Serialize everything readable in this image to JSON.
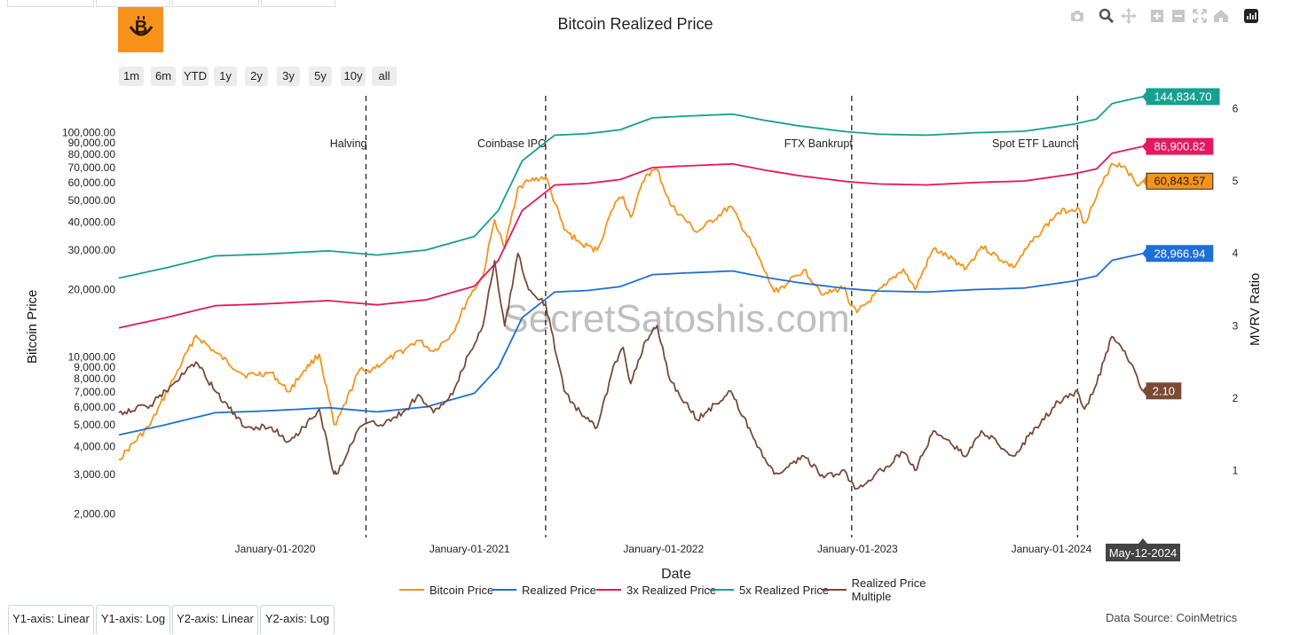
{
  "page": {
    "title": "Bitcoin Realized Price",
    "data_source": "Data Source: CoinMetrics",
    "watermark": "SecretSatoshis.com"
  },
  "toolbar": {
    "icons": [
      "camera-icon",
      "zoom-icon",
      "pan-icon",
      "zoom-in-icon",
      "zoom-out-icon",
      "autoscale-icon",
      "reset-axes-icon",
      "plotly-logo-icon"
    ]
  },
  "range_buttons": [
    "1m",
    "6m",
    "YTD",
    "1y",
    "2y",
    "3y",
    "5y",
    "10y",
    "all"
  ],
  "axis_buttons": [
    "Y1-axis: Linear",
    "Y1-axis: Log",
    "Y2-axis: Linear",
    "Y2-axis: Log"
  ],
  "hover_label": "May-12-2024",
  "chart_data": {
    "type": "line",
    "title": "Bitcoin Realized Price",
    "xlabel": "Date",
    "ylabel": "Bitcoin Price",
    "y2label": "MVRV Ratio",
    "y_scale": "log",
    "xlim": [
      "2019-02-01",
      "2024-05-12"
    ],
    "ylim": [
      1600,
      160000
    ],
    "y2lim": [
      0.1,
      6.3
    ],
    "x_tick_labels": [
      "January-01-2020",
      "January-01-2021",
      "January-01-2022",
      "January-01-2023",
      "January-01-2024"
    ],
    "x_ticks": [
      "2020-01-01",
      "2021-01-01",
      "2022-01-01",
      "2023-01-01",
      "2024-01-01"
    ],
    "y_ticks": [
      2000,
      3000,
      4000,
      5000,
      6000,
      7000,
      8000,
      9000,
      10000,
      20000,
      30000,
      40000,
      50000,
      60000,
      70000,
      80000,
      90000,
      100000
    ],
    "y_tick_labels": [
      "2,000.00",
      "3,000.00",
      "4,000.00",
      "5,000.00",
      "6,000.00",
      "7,000.00",
      "8,000.00",
      "9,000.00",
      "10,000.00",
      "20,000.00",
      "30,000.00",
      "40,000.00",
      "50,000.00",
      "60,000.00",
      "70,000.00",
      "80,000.00",
      "90,000.00",
      "100,000.00"
    ],
    "y2_ticks": [
      1,
      2,
      3,
      4,
      5,
      6
    ],
    "y2_tick_labels": [
      "1",
      "2",
      "3",
      "4",
      "5",
      "6"
    ],
    "grid": false,
    "legend_position": "bottom",
    "annotations": [
      {
        "date": "2020-05-11",
        "label": "Halving"
      },
      {
        "date": "2021-04-14",
        "label": "Coinbase IPO"
      },
      {
        "date": "2022-11-11",
        "label": "FTX Bankrupt"
      },
      {
        "date": "2024-01-10",
        "label": "Spot ETF Launch"
      }
    ],
    "series": [
      {
        "name": "Bitcoin Price",
        "color": "#f7931a",
        "axis": "y",
        "x": [
          "2019-02-01",
          "2019-04-01",
          "2019-05-15",
          "2019-06-26",
          "2019-08-01",
          "2019-09-25",
          "2019-11-15",
          "2019-12-17",
          "2020-01-15",
          "2020-02-13",
          "2020-03-12",
          "2020-03-16",
          "2020-04-29",
          "2020-05-11",
          "2020-06-15",
          "2020-07-27",
          "2020-08-17",
          "2020-09-15",
          "2020-10-21",
          "2020-11-20",
          "2020-12-17",
          "2021-01-08",
          "2021-01-27",
          "2021-02-21",
          "2021-03-13",
          "2021-04-14",
          "2021-05-19",
          "2021-06-22",
          "2021-07-20",
          "2021-08-23",
          "2021-09-07",
          "2021-09-21",
          "2021-10-20",
          "2021-11-10",
          "2021-12-04",
          "2022-01-24",
          "2022-03-28",
          "2022-05-10",
          "2022-06-18",
          "2022-07-15",
          "2022-08-13",
          "2022-09-20",
          "2022-10-29",
          "2022-11-09",
          "2022-11-21",
          "2023-01-14",
          "2023-02-16",
          "2023-03-10",
          "2023-04-14",
          "2023-06-15",
          "2023-07-13",
          "2023-09-11",
          "2023-10-24",
          "2023-12-05",
          "2024-01-10",
          "2024-01-23",
          "2024-02-15",
          "2024-03-14",
          "2024-04-08",
          "2024-05-01",
          "2024-05-12"
        ],
        "y": [
          3500,
          5000,
          8000,
          12500,
          10500,
          8300,
          8500,
          7000,
          8700,
          10300,
          5000,
          5000,
          8800,
          8600,
          9500,
          11000,
          11900,
          10600,
          12800,
          18400,
          23000,
          41000,
          30500,
          57000,
          61000,
          63500,
          37000,
          31700,
          30000,
          49000,
          52000,
          42000,
          65000,
          68500,
          48000,
          36000,
          47000,
          31000,
          19500,
          21500,
          24500,
          19000,
          20500,
          17000,
          15800,
          20900,
          24700,
          20000,
          30400,
          25000,
          31200,
          25100,
          34500,
          44000,
          46500,
          39500,
          52000,
          73000,
          71000,
          58000,
          60843.57
        ]
      },
      {
        "name": "Realized Price",
        "color": "#1f6fd6",
        "axis": "y",
        "x": [
          "2019-02-01",
          "2019-05-01",
          "2019-08-01",
          "2019-11-01",
          "2020-03-01",
          "2020-06-01",
          "2020-09-01",
          "2020-12-01",
          "2021-01-15",
          "2021-03-01",
          "2021-05-01",
          "2021-07-01",
          "2021-09-01",
          "2021-11-01",
          "2022-01-01",
          "2022-04-01",
          "2022-06-01",
          "2022-08-01",
          "2022-11-01",
          "2023-01-01",
          "2023-04-01",
          "2023-07-01",
          "2023-10-01",
          "2024-01-01",
          "2024-02-15",
          "2024-03-15",
          "2024-05-12"
        ],
        "y": [
          4500,
          5000,
          5650,
          5750,
          5950,
          5700,
          6000,
          6900,
          9000,
          15000,
          19500,
          19800,
          20600,
          23300,
          23700,
          24200,
          22700,
          21500,
          20200,
          19700,
          19500,
          20000,
          20300,
          21800,
          23000,
          27000,
          28966.94
        ]
      },
      {
        "name": "3x Realized Price",
        "color": "#e5175e",
        "axis": "y",
        "x": [
          "2019-02-01",
          "2019-05-01",
          "2019-08-01",
          "2019-11-01",
          "2020-03-01",
          "2020-06-01",
          "2020-09-01",
          "2020-12-01",
          "2021-01-15",
          "2021-03-01",
          "2021-05-01",
          "2021-07-01",
          "2021-09-01",
          "2021-11-01",
          "2022-01-01",
          "2022-04-01",
          "2022-06-01",
          "2022-08-01",
          "2022-11-01",
          "2023-01-01",
          "2023-04-01",
          "2023-07-01",
          "2023-10-01",
          "2024-01-01",
          "2024-02-15",
          "2024-03-15",
          "2024-05-12"
        ],
        "y": [
          13500,
          15000,
          16950,
          17250,
          17850,
          17100,
          18000,
          20700,
          27000,
          45000,
          58500,
          59400,
          61800,
          69900,
          71100,
          72600,
          68100,
          64500,
          60600,
          59100,
          58500,
          60000,
          60900,
          65400,
          69000,
          81000,
          86900.82
        ]
      },
      {
        "name": "5x Realized Price",
        "color": "#17a090",
        "axis": "y",
        "x": [
          "2019-02-01",
          "2019-05-01",
          "2019-08-01",
          "2019-11-01",
          "2020-03-01",
          "2020-06-01",
          "2020-09-01",
          "2020-12-01",
          "2021-01-15",
          "2021-03-01",
          "2021-05-01",
          "2021-07-01",
          "2021-09-01",
          "2021-11-01",
          "2022-01-01",
          "2022-04-01",
          "2022-06-01",
          "2022-08-01",
          "2022-11-01",
          "2023-01-01",
          "2023-04-01",
          "2023-07-01",
          "2023-10-01",
          "2024-01-01",
          "2024-02-15",
          "2024-03-15",
          "2024-05-12"
        ],
        "y": [
          22500,
          25000,
          28250,
          28750,
          29750,
          28500,
          30000,
          34500,
          45000,
          75000,
          97500,
          99000,
          103000,
          116500,
          118500,
          121000,
          113500,
          107500,
          101000,
          98500,
          97500,
          100000,
          101500,
          109000,
          115000,
          135000,
          144834.7
        ]
      },
      {
        "name": "Realized Price Multiple",
        "color": "#7a4a36",
        "axis": "y2",
        "x": [
          "2019-02-01",
          "2019-04-01",
          "2019-05-15",
          "2019-06-26",
          "2019-08-01",
          "2019-09-25",
          "2019-11-15",
          "2019-12-17",
          "2020-01-15",
          "2020-02-13",
          "2020-03-12",
          "2020-03-16",
          "2020-04-29",
          "2020-05-11",
          "2020-06-15",
          "2020-07-27",
          "2020-08-17",
          "2020-09-15",
          "2020-10-21",
          "2020-11-20",
          "2020-12-17",
          "2021-01-08",
          "2021-01-27",
          "2021-02-21",
          "2021-03-13",
          "2021-04-14",
          "2021-05-19",
          "2021-06-22",
          "2021-07-20",
          "2021-08-23",
          "2021-09-07",
          "2021-09-21",
          "2021-10-20",
          "2021-11-10",
          "2021-12-04",
          "2022-01-24",
          "2022-03-28",
          "2022-05-10",
          "2022-06-18",
          "2022-07-15",
          "2022-08-13",
          "2022-09-20",
          "2022-10-29",
          "2022-11-09",
          "2022-11-21",
          "2023-01-14",
          "2023-02-16",
          "2023-03-10",
          "2023-04-14",
          "2023-06-15",
          "2023-07-13",
          "2023-09-11",
          "2023-10-24",
          "2023-12-05",
          "2024-01-10",
          "2024-01-23",
          "2024-02-15",
          "2024-03-14",
          "2024-04-08",
          "2024-05-01",
          "2024-05-12"
        ],
        "y": [
          1.8,
          1.9,
          2.2,
          2.5,
          2.1,
          1.6,
          1.6,
          1.4,
          1.6,
          1.85,
          0.95,
          0.95,
          1.6,
          1.65,
          1.65,
          1.85,
          2.05,
          1.8,
          2.05,
          2.6,
          3.0,
          3.9,
          3.0,
          4.0,
          3.5,
          3.3,
          2.1,
          1.75,
          1.6,
          2.5,
          2.7,
          2.2,
          2.8,
          3.0,
          2.25,
          1.7,
          2.1,
          1.45,
          0.95,
          1.05,
          1.2,
          0.9,
          1.0,
          0.85,
          0.75,
          1.05,
          1.25,
          1.0,
          1.55,
          1.2,
          1.55,
          1.2,
          1.6,
          1.95,
          2.1,
          1.85,
          2.2,
          2.85,
          2.65,
          2.3,
          2.1
        ]
      }
    ],
    "end_labels": [
      {
        "series": "5x Realized Price",
        "text": "144,834.70",
        "color": "#17a090"
      },
      {
        "series": "3x Realized Price",
        "text": "86,900.82",
        "color": "#e5175e"
      },
      {
        "series": "Bitcoin Price",
        "text": "60,843.57",
        "color": "#f7931a"
      },
      {
        "series": "Realized Price",
        "text": "28,966.94",
        "color": "#1f6fd6"
      },
      {
        "series": "Realized Price Multiple",
        "text": "2.10",
        "color": "#7a4a36"
      }
    ]
  }
}
